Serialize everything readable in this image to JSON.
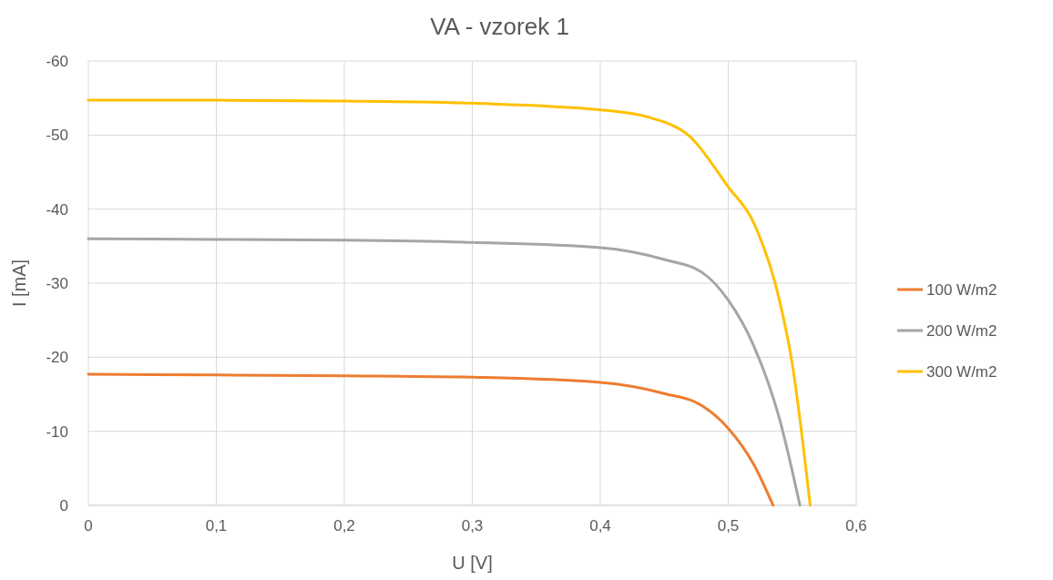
{
  "chart_data": {
    "type": "line",
    "title": "VA - vzorek 1",
    "xlabel": "U [V]",
    "ylabel": "I [mA]",
    "xlim": [
      0,
      0.6
    ],
    "xticks": [
      0,
      {
        "value": 0.1,
        "label": "0,1"
      },
      {
        "value": 0.2,
        "label": "0,2"
      },
      {
        "value": 0.3,
        "label": "0,3"
      },
      {
        "value": 0.4,
        "label": "0,4"
      },
      {
        "value": 0.5,
        "label": "0,5"
      },
      {
        "value": 0.6,
        "label": "0,6"
      }
    ],
    "ylim": [
      0,
      -60
    ],
    "yticks": [
      0,
      -10,
      -20,
      -30,
      -40,
      -50,
      -60
    ],
    "grid": true,
    "legend": "right",
    "marker": "none",
    "line_style": "solid",
    "series": [
      {
        "name": "100 W/m2",
        "color": "#ed7d31",
        "x": [
          0,
          0.1,
          0.2,
          0.3,
          0.4,
          0.45,
          0.48,
          0.5,
          0.52,
          0.535
        ],
        "values": [
          -17.7,
          -17.6,
          -17.5,
          -17.3,
          -16.6,
          -15.1,
          -13.4,
          -10.4,
          -5.5,
          0
        ]
      },
      {
        "name": "200 W/m2",
        "color": "#a5a5a5",
        "x": [
          0,
          0.1,
          0.2,
          0.3,
          0.4,
          0.45,
          0.48,
          0.5,
          0.52,
          0.54,
          0.556
        ],
        "values": [
          -36.0,
          -35.9,
          -35.8,
          -35.5,
          -34.8,
          -33.2,
          -31.4,
          -27.7,
          -21.5,
          -11.7,
          0
        ]
      },
      {
        "name": "300 W/m2",
        "color": "#ffc000",
        "x": [
          0,
          0.1,
          0.2,
          0.3,
          0.4,
          0.44,
          0.47,
          0.5,
          0.52,
          0.54,
          0.55,
          0.564
        ],
        "values": [
          -54.7,
          -54.7,
          -54.6,
          -54.3,
          -53.4,
          -52.3,
          -49.8,
          -43,
          -38.1,
          -27.7,
          -19.1,
          0
        ]
      }
    ]
  }
}
